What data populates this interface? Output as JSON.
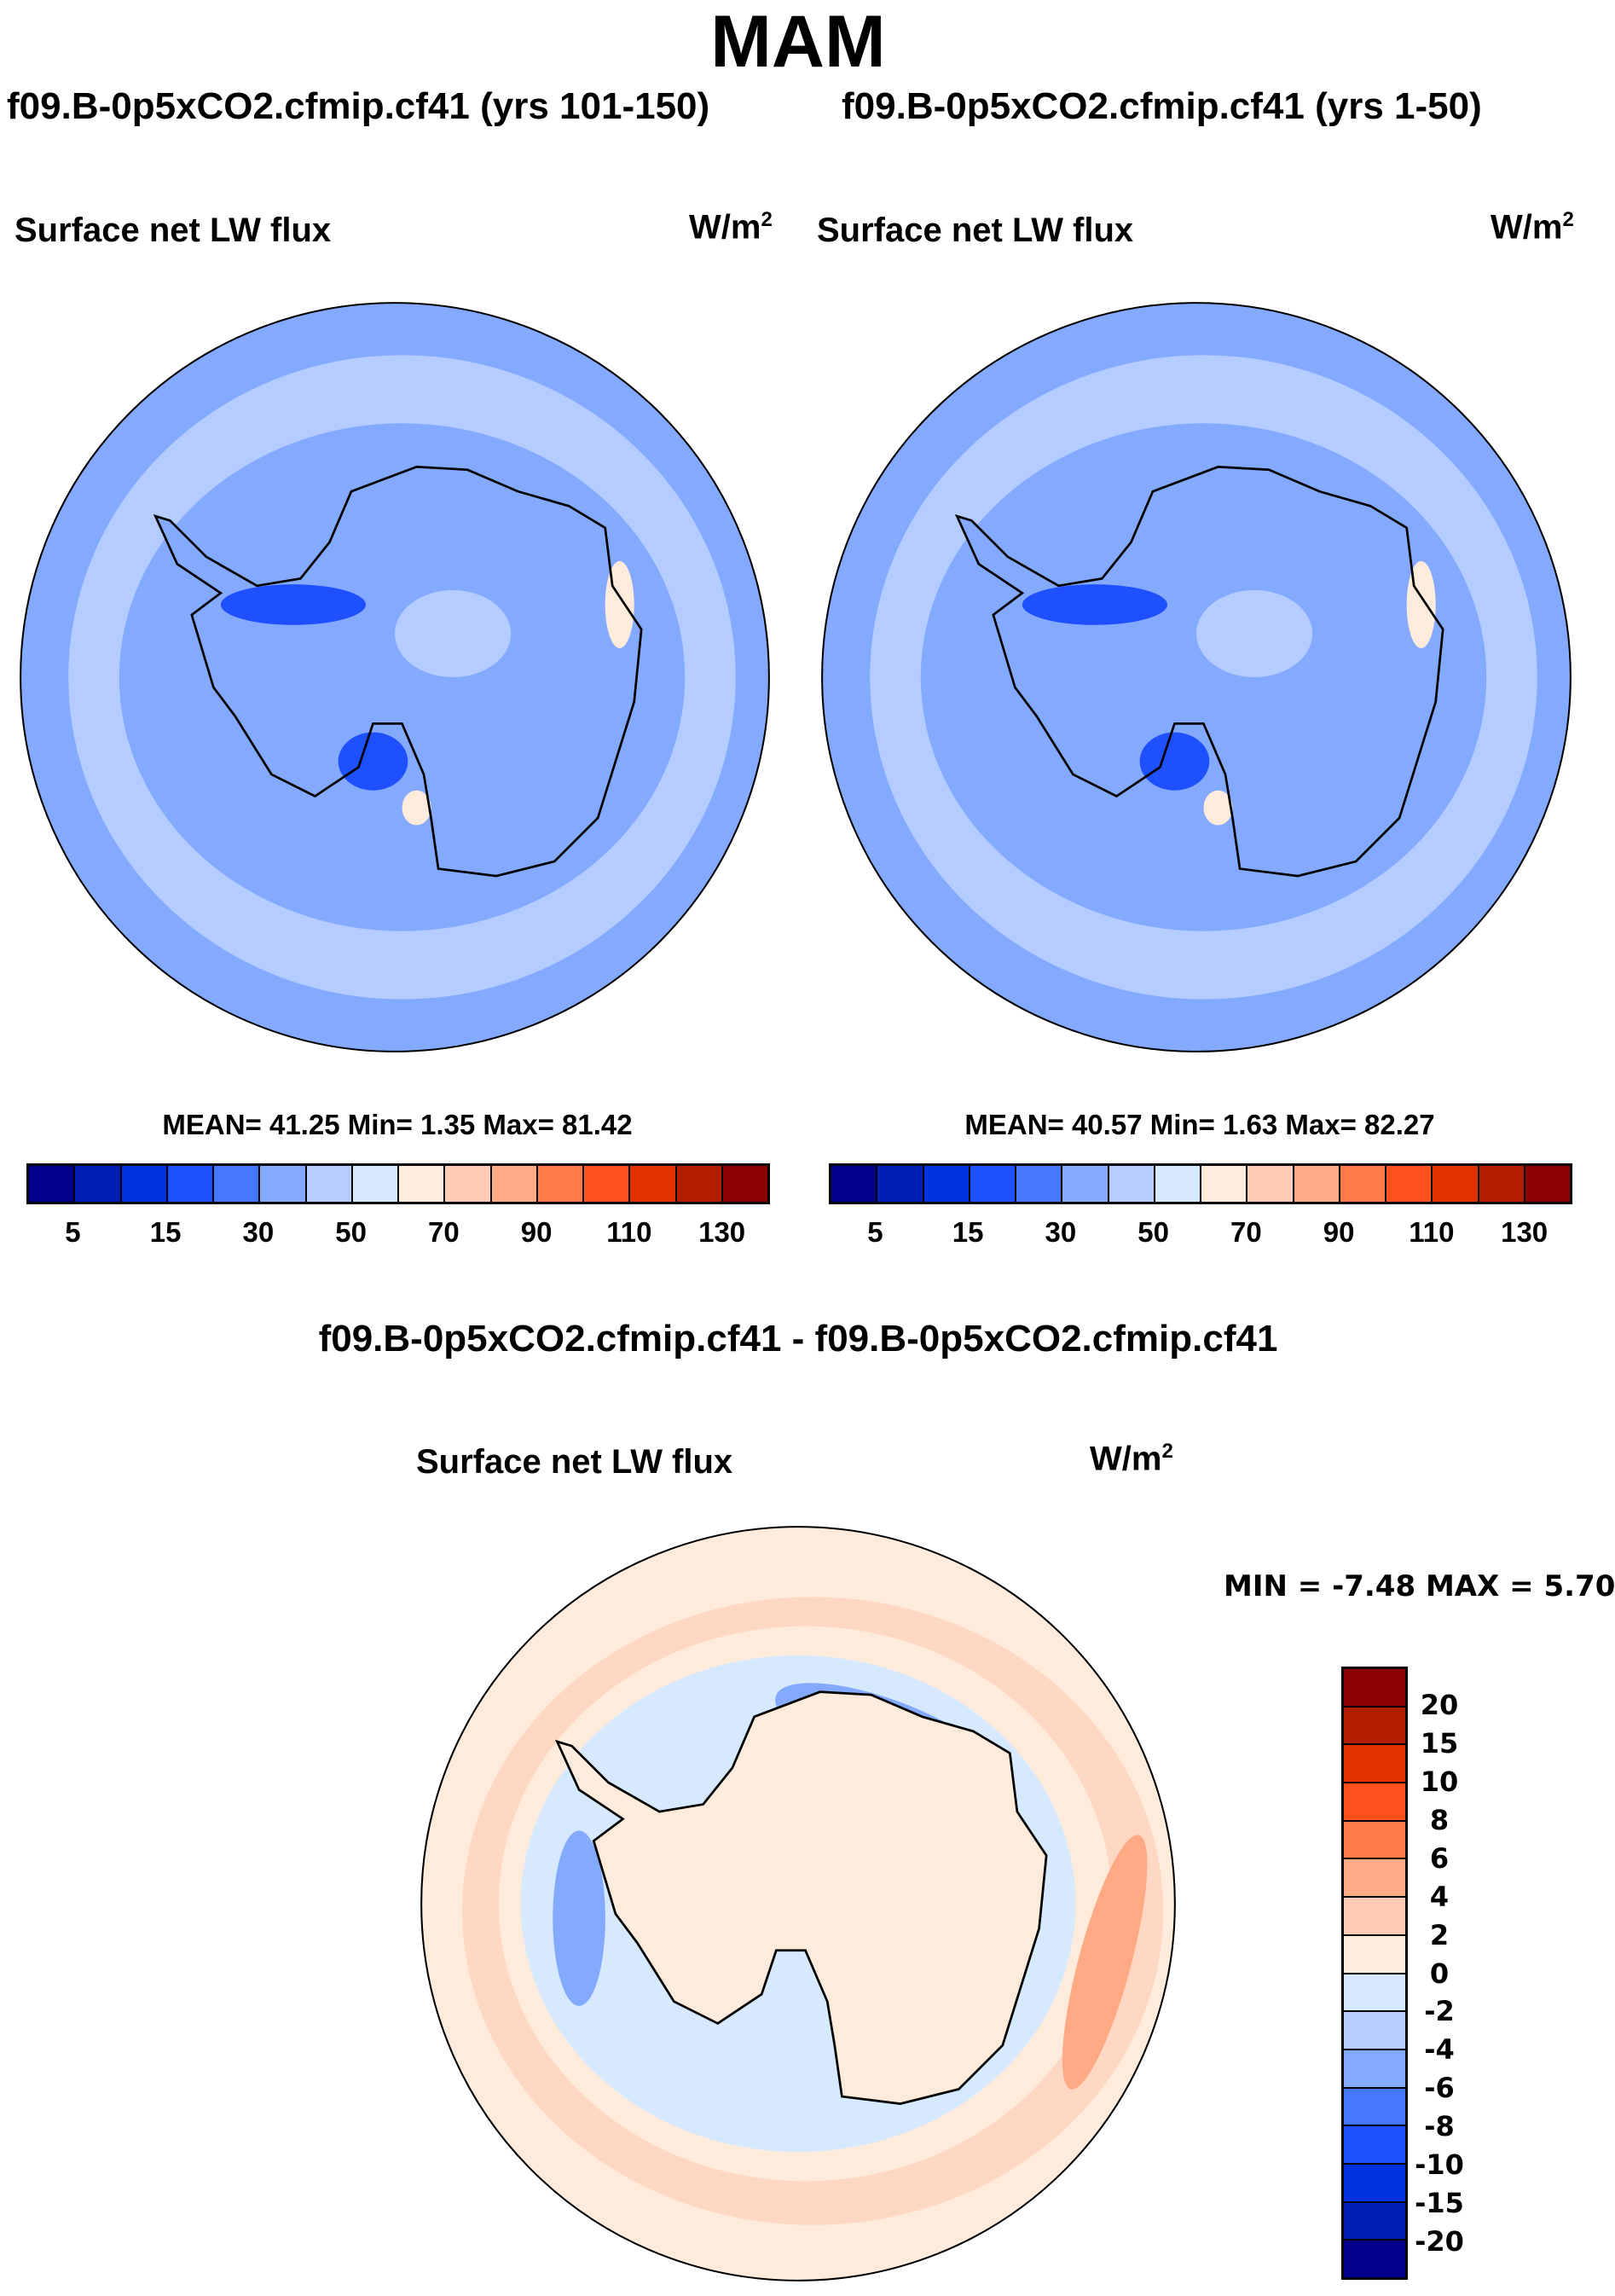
{
  "title": "MAM",
  "chart_data": [
    {
      "type": "heatmap",
      "projection": "south-polar-stereographic",
      "header": "f09.B-0p5xCO2.cfmip.cf41 (yrs 101-150)",
      "title": "Surface net LW flux",
      "units": "W/m",
      "units_sup": "2",
      "stats": "MEAN=  41.25  Min=   1.35  Max=  81.42",
      "mean": 41.25,
      "min": 1.35,
      "max": 81.42,
      "colorbar_ticks": [
        "5",
        "15",
        "30",
        "50",
        "70",
        "90",
        "110",
        "130"
      ]
    },
    {
      "type": "heatmap",
      "projection": "south-polar-stereographic",
      "header": "f09.B-0p5xCO2.cfmip.cf41 (yrs 1-50)",
      "title": "Surface net LW flux",
      "units": "W/m",
      "units_sup": "2",
      "stats": "MEAN=  40.57  Min=   1.63  Max=  82.27",
      "mean": 40.57,
      "min": 1.63,
      "max": 82.27,
      "colorbar_ticks": [
        "5",
        "15",
        "30",
        "50",
        "70",
        "90",
        "110",
        "130"
      ]
    },
    {
      "type": "heatmap",
      "projection": "south-polar-stereographic",
      "header": "f09.B-0p5xCO2.cfmip.cf41 - f09.B-0p5xCO2.cfmip.cf41",
      "title": "Surface net LW flux",
      "units": "W/m",
      "units_sup": "2",
      "stats": "MIN =  -7.48 MAX =   5.70",
      "min": -7.48,
      "max": 5.7,
      "colorbar_ticks": [
        "20",
        "15",
        "10",
        "8",
        "6",
        "4",
        "2",
        "0",
        "-2",
        "-4",
        "-6",
        "-8",
        "-10",
        "-15",
        "-20"
      ]
    }
  ],
  "palette": [
    "#00008b",
    "#001eb4",
    "#0032e1",
    "#1e50ff",
    "#4678ff",
    "#84aaff",
    "#b4ccff",
    "#d6e9ff",
    "#ffebdb",
    "#ffcbb4",
    "#ffaa84",
    "#ff7a46",
    "#ff501e",
    "#e13200",
    "#b41e00",
    "#8b0000"
  ]
}
